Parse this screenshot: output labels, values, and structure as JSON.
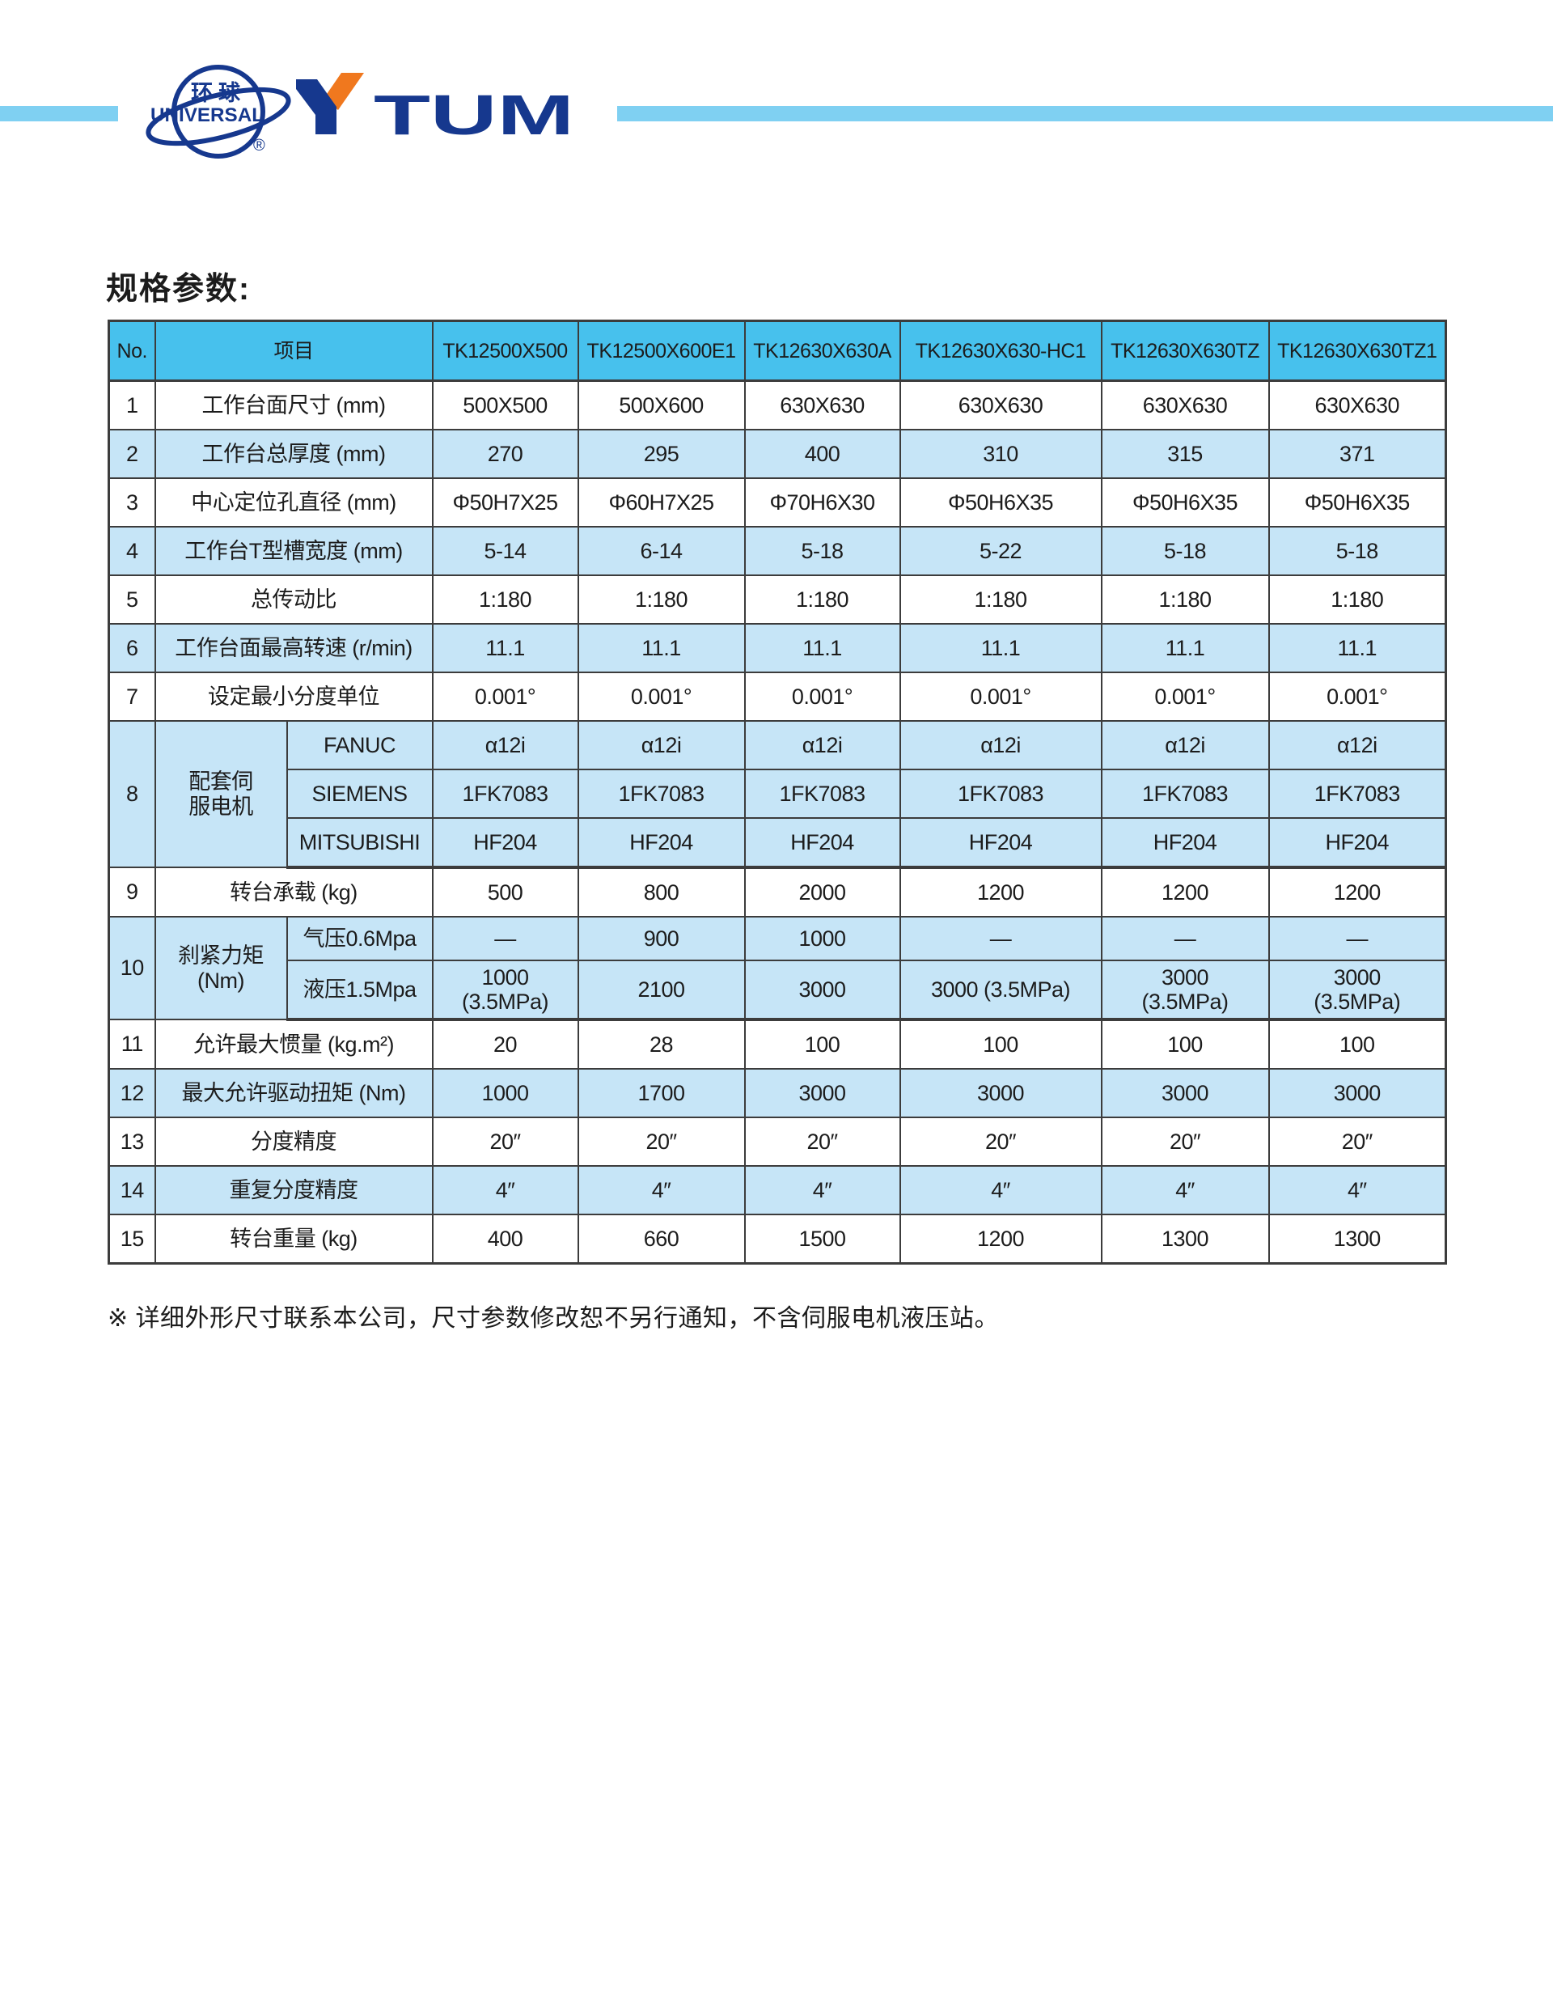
{
  "brand": {
    "globe_text_cn": "环球",
    "globe_text_en": "UNIVERSAL",
    "registered_mark": "®",
    "wordmark": "YTUM",
    "wordmark_rest": "TUM"
  },
  "title": "规格参数:",
  "footnote": "※ 详细外形尺寸联系本公司，尺寸参数修改恕不另行通知，不含伺服电机液压站。",
  "colors": {
    "header_blue": "#47C1ED",
    "row_light_blue": "#C6E5F7",
    "bar_light_blue": "#7FD0F2",
    "logo_blue": "#16388E",
    "logo_orange": "#F0781E",
    "border_gray": "#3c3c3c"
  },
  "table": {
    "headers": [
      "No.",
      "项目",
      "TK12500X500",
      "TK12500X600E1",
      "TK12630X630A",
      "TK12630X630-HC1",
      "TK12630X630TZ",
      "TK12630X630TZ1"
    ],
    "rows": [
      {
        "no": "1",
        "label": "工作台面尺寸 (mm)",
        "values": [
          "500X500",
          "500X600",
          "630X630",
          "630X630",
          "630X630",
          "630X630"
        ]
      },
      {
        "no": "2",
        "label": "工作台总厚度 (mm)",
        "values": [
          "270",
          "295",
          "400",
          "310",
          "315",
          "371"
        ]
      },
      {
        "no": "3",
        "label": "中心定位孔直径 (mm)",
        "values": [
          "Φ50H7X25",
          "Φ60H7X25",
          "Φ70H6X30",
          "Φ50H6X35",
          "Φ50H6X35",
          "Φ50H6X35"
        ]
      },
      {
        "no": "4",
        "label": "工作台T型槽宽度 (mm)",
        "values": [
          "5-14",
          "6-14",
          "5-18",
          "5-22",
          "5-18",
          "5-18"
        ]
      },
      {
        "no": "5",
        "label": "总传动比",
        "values": [
          "1:180",
          "1:180",
          "1:180",
          "1:180",
          "1:180",
          "1:180"
        ]
      },
      {
        "no": "6",
        "label": "工作台面最高转速 (r/min)",
        "values": [
          "11.1",
          "11.1",
          "11.1",
          "11.1",
          "11.1",
          "11.1"
        ]
      },
      {
        "no": "7",
        "label": "设定最小分度单位",
        "values": [
          "0.001°",
          "0.001°",
          "0.001°",
          "0.001°",
          "0.001°",
          "0.001°"
        ]
      },
      {
        "no": "8",
        "label": "配套伺\n服电机",
        "sub": [
          {
            "name": "FANUC",
            "values": [
              "α12i",
              "α12i",
              "α12i",
              "α12i",
              "α12i",
              "α12i"
            ]
          },
          {
            "name": "SIEMENS",
            "values": [
              "1FK7083",
              "1FK7083",
              "1FK7083",
              "1FK7083",
              "1FK7083",
              "1FK7083"
            ]
          },
          {
            "name": "MITSUBISHI",
            "values": [
              "HF204",
              "HF204",
              "HF204",
              "HF204",
              "HF204",
              "HF204"
            ]
          }
        ]
      },
      {
        "no": "9",
        "label": "转台承载 (kg)",
        "values": [
          "500",
          "800",
          "2000",
          "1200",
          "1200",
          "1200"
        ]
      },
      {
        "no": "10",
        "label": "刹紧力矩\n(Nm)",
        "sub": [
          {
            "name": "气压0.6Mpa",
            "values": [
              "—",
              "900",
              "1000",
              "—",
              "—",
              "—"
            ]
          },
          {
            "name": "液压1.5Mpa",
            "values": [
              "1000\n(3.5MPa)",
              "2100",
              "3000",
              "3000 (3.5MPa)",
              "3000\n(3.5MPa)",
              "3000\n(3.5MPa)"
            ]
          }
        ]
      },
      {
        "no": "11",
        "label": "允许最大惯量 (kg.m²)",
        "values": [
          "20",
          "28",
          "100",
          "100",
          "100",
          "100"
        ]
      },
      {
        "no": "12",
        "label": "最大允许驱动扭矩 (Nm)",
        "values": [
          "1000",
          "1700",
          "3000",
          "3000",
          "3000",
          "3000"
        ]
      },
      {
        "no": "13",
        "label": "分度精度",
        "values": [
          "20″",
          "20″",
          "20″",
          "20″",
          "20″",
          "20″"
        ]
      },
      {
        "no": "14",
        "label": "重复分度精度",
        "values": [
          "4″",
          "4″",
          "4″",
          "4″",
          "4″",
          "4″"
        ]
      },
      {
        "no": "15",
        "label": "转台重量 (kg)",
        "values": [
          "400",
          "660",
          "1500",
          "1200",
          "1300",
          "1300"
        ]
      }
    ]
  }
}
